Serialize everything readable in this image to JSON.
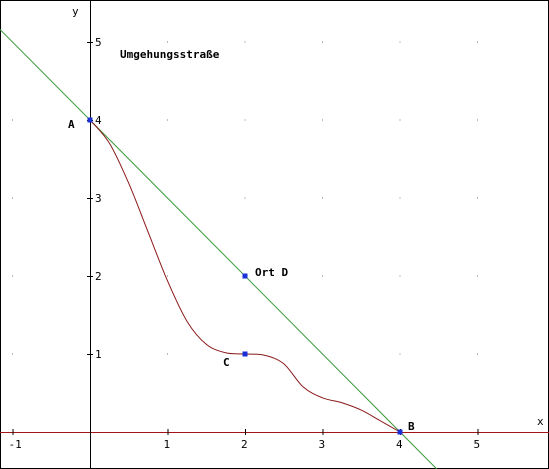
{
  "chart_data": {
    "type": "line",
    "title": "Umgehungsstraße",
    "xlabel": "x",
    "ylabel": "y",
    "xlim": [
      -1.15,
      5.9
    ],
    "ylim": [
      -0.45,
      5.55
    ],
    "grid": "dots",
    "x_ticks": [
      "-1",
      "1",
      "2",
      "3",
      "4",
      "5"
    ],
    "y_ticks": [
      "1",
      "2",
      "3",
      "4",
      "5"
    ],
    "colors": {
      "line": "#3a9a3a",
      "curve": "#8b1a1a",
      "x_axis_line": "#a31515",
      "points": "#1a2fd6",
      "axes": "#000000"
    },
    "series": [
      {
        "kind": "line",
        "color": "#3a9a3a",
        "x": [
          -1.2,
          4.5
        ],
        "y": [
          5.2,
          -0.5
        ]
      },
      {
        "kind": "curve",
        "color": "#8b1a1a",
        "x": [
          0,
          0.25,
          0.5,
          0.75,
          1.0,
          1.25,
          1.5,
          1.75,
          2.0,
          2.25,
          2.5,
          2.75,
          3.0,
          3.25,
          3.5,
          3.75,
          4.0
        ],
        "y": [
          4,
          3.703,
          3.188,
          2.563,
          1.938,
          1.422,
          1.125,
          1.016,
          1.0,
          0.984,
          0.875,
          0.578,
          0.438,
          0.375,
          0.281,
          0.141,
          0
        ]
      }
    ],
    "points": [
      {
        "label": "A",
        "x": 0,
        "y": 4
      },
      {
        "label": "Ort D",
        "x": 2,
        "y": 2
      },
      {
        "label": "C",
        "x": 2,
        "y": 1
      },
      {
        "label": "B",
        "x": 4,
        "y": 0
      }
    ]
  }
}
